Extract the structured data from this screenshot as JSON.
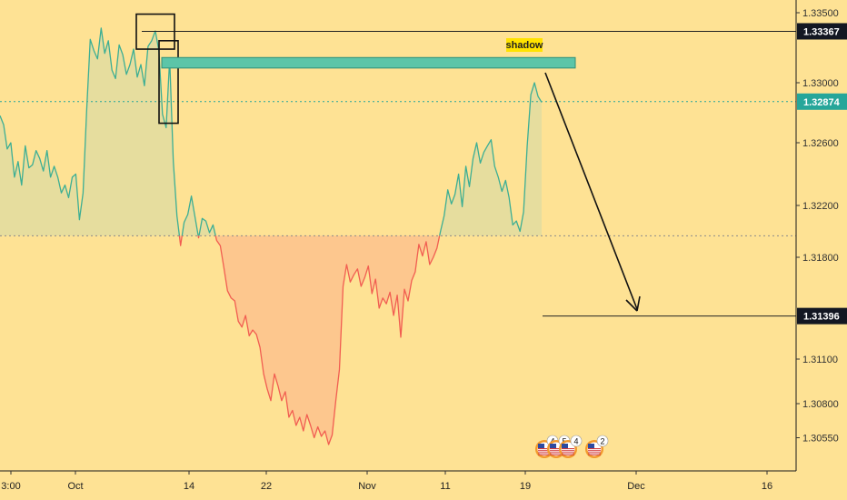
{
  "chart_data": {
    "type": "area",
    "title": "",
    "xlabel": "",
    "ylabel": "",
    "ylim": [
      1.3037,
      1.3361
    ],
    "baseline": 1.31966,
    "x_ticks": [
      "3:00",
      "Oct",
      "14",
      "22",
      "Nov",
      "11",
      "19",
      "Dec",
      "16"
    ],
    "y_ticks": [
      "1.33500",
      "1.33000",
      "1.32600",
      "1.32200",
      "1.31800",
      "1.31100",
      "1.30800",
      "1.30550"
    ],
    "price_tags": [
      {
        "id": "resistance",
        "label": "1.33367",
        "value": 1.33367,
        "style": "dark"
      },
      {
        "id": "last",
        "label": "1.32874",
        "value": 1.32874,
        "style": "teal"
      },
      {
        "id": "target",
        "label": "1.31396",
        "value": 1.31396,
        "style": "dark"
      }
    ],
    "series": [
      {
        "values": [
          1.3278,
          1.3272,
          1.3256,
          1.326,
          1.3238,
          1.3248,
          1.3233,
          1.3258,
          1.3244,
          1.3246,
          1.3255,
          1.325,
          1.3242,
          1.3255,
          1.3238,
          1.3245,
          1.3238,
          1.3228,
          1.3233,
          1.3225,
          1.3238,
          1.324,
          1.3209,
          1.3228,
          1.3282,
          1.3331,
          1.3323,
          1.3317,
          1.3339,
          1.3321,
          1.333,
          1.3309,
          1.3303,
          1.3327,
          1.332,
          1.3306,
          1.3313,
          1.3324,
          1.3304,
          1.3313,
          1.3298,
          1.3326,
          1.333,
          1.3337,
          1.3323,
          1.3279,
          1.327,
          1.3317,
          1.3248,
          1.3212,
          1.3189,
          1.3207,
          1.3213,
          1.3226,
          1.3211,
          1.3195,
          1.321,
          1.3208,
          1.3199,
          1.3205,
          1.3193,
          1.3189,
          1.3173,
          1.3157,
          1.3152,
          1.315,
          1.3136,
          1.3132,
          1.314,
          1.3126,
          1.313,
          1.3127,
          1.3118,
          1.31,
          1.309,
          1.3082,
          1.31,
          1.3092,
          1.3082,
          1.3088,
          1.307,
          1.3075,
          1.3064,
          1.307,
          1.306,
          1.3072,
          1.3064,
          1.3055,
          1.3063,
          1.3056,
          1.306,
          1.305,
          1.3057,
          1.3082,
          1.3103,
          1.316,
          1.3175,
          1.3163,
          1.3168,
          1.3172,
          1.316,
          1.3166,
          1.3174,
          1.3155,
          1.3165,
          1.3145,
          1.3152,
          1.3148,
          1.3156,
          1.314,
          1.3154,
          1.3125,
          1.3158,
          1.315,
          1.3164,
          1.317,
          1.319,
          1.3181,
          1.3192,
          1.3175,
          1.318,
          1.3187,
          1.32,
          1.3212,
          1.323,
          1.3221,
          1.3227,
          1.324,
          1.3219,
          1.3245,
          1.3232,
          1.325,
          1.326,
          1.3247,
          1.3254,
          1.3258,
          1.3262,
          1.3245,
          1.3238,
          1.3229,
          1.3236,
          1.3225,
          1.3205,
          1.3208,
          1.32,
          1.3215,
          1.3258,
          1.3292,
          1.33,
          1.3291,
          1.3287
        ]
      }
    ],
    "annotations": [
      {
        "id": "shadow-zone",
        "label": "shadow",
        "y_top": 1.3318,
        "y_bottom": 1.33105
      },
      {
        "id": "high-box",
        "y_top": 1.3349,
        "y_bottom": 1.3324
      },
      {
        "id": "second-box",
        "y_top": 1.333,
        "y_bottom": 1.3273
      }
    ],
    "grid": false,
    "legend": "none"
  },
  "calendar_events": [
    {
      "flag": "us-flag-icon",
      "count": "4"
    },
    {
      "flag": "us-flag-icon",
      "count": "5"
    },
    {
      "flag": "us-flag-icon",
      "count": "4"
    },
    {
      "flag": "us-flag-icon",
      "count": "2"
    }
  ],
  "colors": {
    "background": "#fee294",
    "up_line": "#3cae94",
    "up_fill": "#e6dd9e",
    "down_line": "#f15d51",
    "down_fill": "#fdc78e",
    "zone_fill": "#5cc5a8",
    "tag_dark": "#131722",
    "tag_teal": "#26a69a",
    "label_bg": "#ffe300"
  }
}
